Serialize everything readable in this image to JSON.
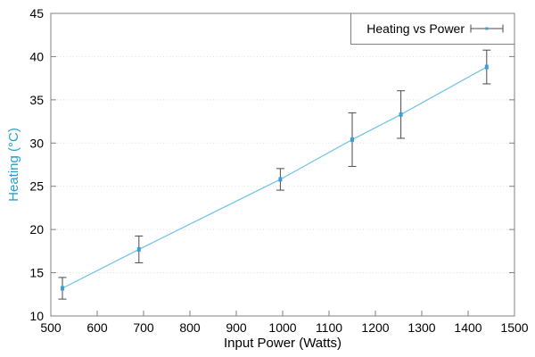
{
  "chart_data": {
    "type": "line",
    "title": "",
    "xlabel": "Input Power (Watts)",
    "ylabel": "Heating (°C)",
    "xlim": [
      500,
      1500
    ],
    "ylim": [
      10,
      45
    ],
    "xticks": [
      500,
      600,
      700,
      800,
      900,
      1000,
      1100,
      1200,
      1300,
      1400,
      1500
    ],
    "yticks": [
      10,
      15,
      20,
      25,
      30,
      35,
      40,
      45
    ],
    "grid": "horizontal-dotted",
    "legend": {
      "label": "Heating vs Power",
      "position": "top-right",
      "boxed": true
    },
    "series": [
      {
        "name": "Heating vs Power",
        "style": "errorlines",
        "x": [
          525,
          690,
          995,
          1150,
          1255,
          1440
        ],
        "y": [
          13.2,
          17.7,
          25.8,
          30.4,
          33.3,
          38.8
        ],
        "yerr": [
          1.25,
          1.55,
          1.25,
          3.1,
          2.75,
          1.95
        ]
      }
    ],
    "colors": {
      "line": "#6fc2e7",
      "marker": "#3d9fd6",
      "errorbar": "#4a4a4a",
      "frame": "#808080",
      "grid": "#dedede",
      "ylabel_text": "#2c9ccb",
      "text": "#000000",
      "background": "#ffffff"
    }
  }
}
